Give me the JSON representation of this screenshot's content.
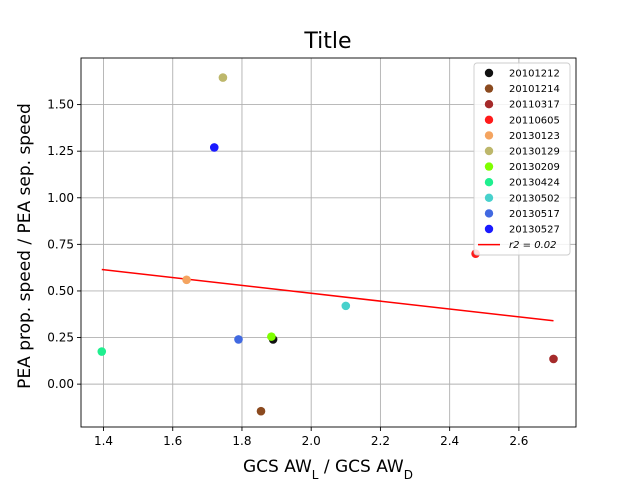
{
  "chart_data": {
    "type": "scatter",
    "title": "Title",
    "xlabel": "GCS AW",
    "xlabel_sub1": "L",
    "xlabel_mid": " / GCS AW",
    "xlabel_sub2": "D",
    "ylabel": "PEA prop. speed / PEA sep. speed",
    "xlim": [
      1.335,
      2.765
    ],
    "ylim": [
      -0.23,
      1.75
    ],
    "xticks": [
      1.4,
      1.6,
      1.8,
      2.0,
      2.2,
      2.4,
      2.6
    ],
    "xtick_labels": [
      "1.4",
      "1.6",
      "1.8",
      "2.0",
      "2.2",
      "2.4",
      "2.6"
    ],
    "yticks": [
      0.0,
      0.25,
      0.5,
      0.75,
      1.0,
      1.25,
      1.5
    ],
    "ytick_labels": [
      "0.00",
      "0.25",
      "0.50",
      "0.75",
      "1.00",
      "1.25",
      "1.50"
    ],
    "grid": true,
    "legend_position": "top-right",
    "series": [
      {
        "name": "20101212",
        "color": "#111111",
        "x": [
          1.89
        ],
        "y": [
          0.24
        ]
      },
      {
        "name": "20101214",
        "color": "#8b4a1f",
        "x": [
          1.855
        ],
        "y": [
          -0.145
        ]
      },
      {
        "name": "20110317",
        "color": "#a52a2a",
        "x": [
          2.7
        ],
        "y": [
          0.135
        ]
      },
      {
        "name": "20110605",
        "color": "#ff1a1a",
        "x": [
          2.475
        ],
        "y": [
          0.7
        ]
      },
      {
        "name": "20130123",
        "color": "#f4a460",
        "x": [
          1.64
        ],
        "y": [
          0.56
        ]
      },
      {
        "name": "20130129",
        "color": "#bdb76b",
        "x": [
          1.745
        ],
        "y": [
          1.645
        ]
      },
      {
        "name": "20130209",
        "color": "#7fff00",
        "x": [
          1.885
        ],
        "y": [
          0.255
        ]
      },
      {
        "name": "20130424",
        "color": "#1fef8f",
        "x": [
          1.395
        ],
        "y": [
          0.175
        ]
      },
      {
        "name": "20130502",
        "color": "#48d1cc",
        "x": [
          2.1
        ],
        "y": [
          0.42
        ]
      },
      {
        "name": "20130517",
        "color": "#4169e1",
        "x": [
          1.79
        ],
        "y": [
          0.24
        ]
      },
      {
        "name": "20130527",
        "color": "#1a1aff",
        "x": [
          1.72
        ],
        "y": [
          1.27
        ]
      }
    ],
    "fit_line": {
      "label": "r2 = 0.02",
      "color": "#ff0000",
      "x": [
        1.395,
        2.7
      ],
      "y": [
        0.615,
        0.34
      ]
    }
  }
}
